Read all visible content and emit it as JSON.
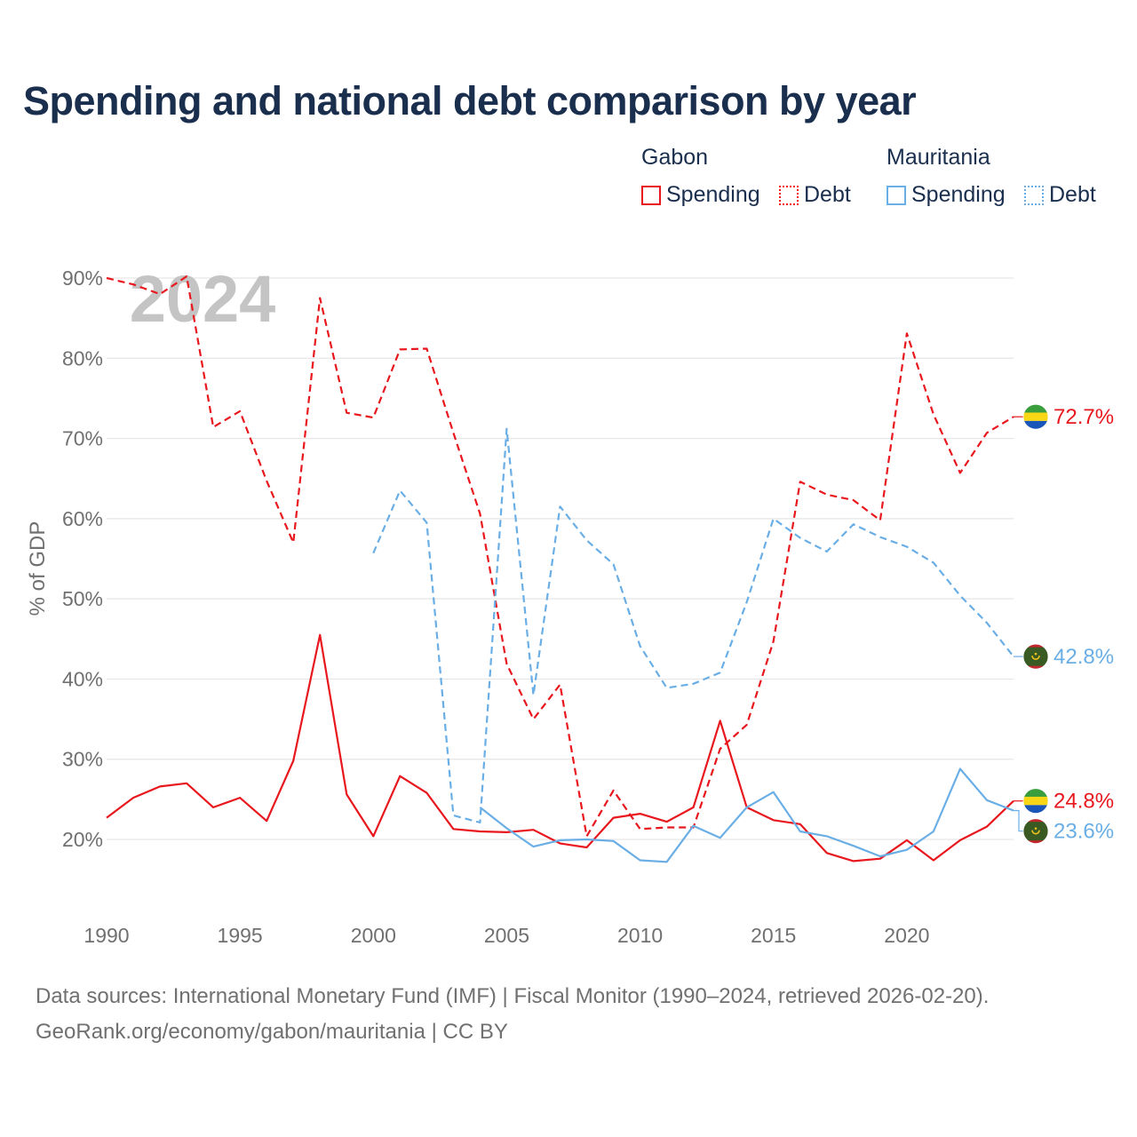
{
  "title": "Spending and national debt comparison by year",
  "legend": {
    "gabon": {
      "label": "Gabon",
      "spending": "Spending",
      "debt": "Debt"
    },
    "mauritania": {
      "label": "Mauritania",
      "spending": "Spending",
      "debt": "Debt"
    }
  },
  "colors": {
    "gabon": "#e8171d",
    "mauritania": "#6aaee6",
    "title": "#1a2e4e",
    "year_watermark": "#c4c4c4"
  },
  "year_watermark": "2024",
  "footer": {
    "line1": "Data sources: International Monetary Fund (IMF) | Fiscal Monitor (1990–2024, retrieved 2026-02-20).",
    "line2": "GeoRank.org/economy/gabon/mauritania | CC BY"
  },
  "chart_data": {
    "type": "line",
    "ylabel": "% of GDP",
    "xlabel": "",
    "ylim": [
      10,
      90
    ],
    "xlim": [
      1990,
      2024
    ],
    "yticks": [
      20,
      30,
      40,
      50,
      60,
      70,
      80,
      90
    ],
    "ytick_labels": [
      "20%",
      "30%",
      "40%",
      "50%",
      "60%",
      "70%",
      "80%",
      "90%"
    ],
    "xticks": [
      1990,
      1995,
      2000,
      2005,
      2010,
      2015,
      2020
    ],
    "xtick_labels": [
      "1990",
      "1995",
      "2000",
      "2005",
      "2010",
      "2015",
      "2020"
    ],
    "series": [
      {
        "name": "Gabon Debt",
        "country": "gabon",
        "kind": "debt",
        "style": "dashed",
        "x": [
          1990,
          1991,
          1992,
          1993,
          1994,
          1995,
          1996,
          1997,
          1998,
          1999,
          2000,
          2001,
          2002,
          2003,
          2004,
          2005,
          2006,
          2007,
          2008,
          2009,
          2010,
          2011,
          2012,
          2013,
          2014,
          2015,
          2016,
          2017,
          2018,
          2019,
          2020,
          2021,
          2022,
          2023,
          2024
        ],
        "values": [
          90.0,
          89.2,
          88.0,
          90.2,
          71.4,
          73.4,
          64.7,
          57.0,
          87.5,
          73.2,
          72.6,
          81.1,
          81.2,
          70.7,
          60.6,
          41.9,
          35.0,
          39.3,
          20.4,
          26.1,
          21.3,
          21.5,
          21.5,
          31.3,
          34.3,
          44.7,
          64.6,
          63.0,
          62.3,
          59.8,
          83.1,
          73.0,
          65.7,
          70.7,
          72.7
        ],
        "end_label": "72.7%"
      },
      {
        "name": "Mauritania Debt",
        "country": "mauritania",
        "kind": "debt",
        "style": "dashed",
        "x": [
          2000,
          2001,
          2002,
          2003,
          2004,
          2005,
          2006,
          2007,
          2008,
          2009,
          2010,
          2011,
          2012,
          2013,
          2014,
          2015,
          2016,
          2017,
          2018,
          2019,
          2020,
          2021,
          2022,
          2023,
          2024
        ],
        "values": [
          55.7,
          63.5,
          59.5,
          23.0,
          22.1,
          71.2,
          38.0,
          61.5,
          57.3,
          54.3,
          44.1,
          38.9,
          39.4,
          40.8,
          49.6,
          60.0,
          57.6,
          55.9,
          59.3,
          57.7,
          56.5,
          54.5,
          50.4,
          47.0,
          42.8
        ],
        "end_label": "42.8%"
      },
      {
        "name": "Gabon Spending",
        "country": "gabon",
        "kind": "spending",
        "style": "solid",
        "x": [
          1990,
          1991,
          1992,
          1993,
          1994,
          1995,
          1996,
          1997,
          1998,
          1999,
          2000,
          2001,
          2002,
          2003,
          2004,
          2005,
          2006,
          2007,
          2008,
          2009,
          2010,
          2011,
          2012,
          2013,
          2014,
          2015,
          2016,
          2017,
          2018,
          2019,
          2020,
          2021,
          2022,
          2023,
          2024
        ],
        "values": [
          22.7,
          25.2,
          26.6,
          27.0,
          24.0,
          25.2,
          22.3,
          29.8,
          45.5,
          25.6,
          20.4,
          27.9,
          25.8,
          21.3,
          21.0,
          20.9,
          21.2,
          19.5,
          19.0,
          22.7,
          23.2,
          22.2,
          24.0,
          34.8,
          24.0,
          22.4,
          21.9,
          18.3,
          17.3,
          17.6,
          19.9,
          17.4,
          19.9,
          21.6,
          24.8
        ],
        "end_label": "24.8%"
      },
      {
        "name": "Mauritania Spending",
        "country": "mauritania",
        "kind": "spending",
        "style": "solid",
        "x": [
          2004,
          2005,
          2006,
          2007,
          2008,
          2009,
          2010,
          2011,
          2012,
          2013,
          2014,
          2015,
          2016,
          2017,
          2018,
          2019,
          2020,
          2021,
          2022,
          2023,
          2024
        ],
        "values": [
          24.0,
          21.4,
          19.1,
          19.9,
          20.0,
          19.8,
          17.4,
          17.2,
          21.7,
          20.2,
          24.0,
          25.9,
          21.0,
          20.4,
          19.2,
          17.9,
          18.7,
          21.0,
          28.8,
          24.9,
          23.6
        ],
        "end_label": "23.6%"
      }
    ]
  }
}
